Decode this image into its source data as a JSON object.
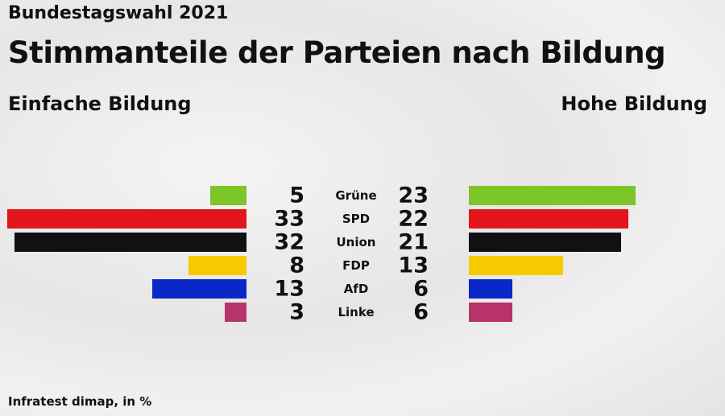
{
  "supertitle": "Bundestagswahl 2021",
  "title": "Stimmanteile der Parteien nach Bildung",
  "source": "Infratest dimap, in %",
  "chart_data": {
    "type": "bar",
    "categories": [
      "Grüne",
      "SPD",
      "Union",
      "FDP",
      "AfD",
      "Linke"
    ],
    "colors": [
      "#7dc629",
      "#e3161b",
      "#111111",
      "#f5cb00",
      "#0a28c8",
      "#b8336a"
    ],
    "series": [
      {
        "name": "Einfache Bildung",
        "values": [
          5,
          33,
          32,
          8,
          13,
          3
        ]
      },
      {
        "name": "Hohe Bildung",
        "values": [
          23,
          22,
          21,
          13,
          6,
          6
        ]
      }
    ],
    "orientation": "horizontal-butterfly",
    "grid": false
  }
}
